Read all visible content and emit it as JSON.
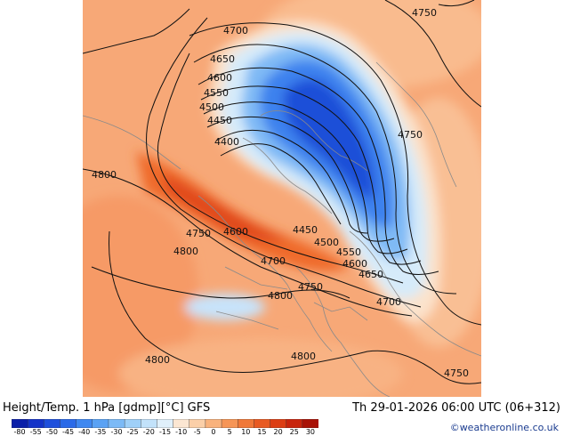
{
  "header": {
    "title_left": "Height/Temp. 1 hPa [gdmp][°C] GFS",
    "title_right": "Th 29-01-2026 06:00 UTC (06+312)"
  },
  "credit": "©weatheronline.co.uk",
  "legend": {
    "ticks": [
      "-80",
      "-55",
      "-50",
      "-45",
      "-40",
      "-35",
      "-30",
      "-25",
      "-20",
      "-15",
      "-10",
      "-5",
      "0",
      "5",
      "10",
      "15",
      "20",
      "25",
      "30"
    ],
    "colors": [
      "#0a1fa8",
      "#1433c8",
      "#1e4fdc",
      "#2a6ae8",
      "#3f88f0",
      "#5aa2f4",
      "#7cbaf6",
      "#9fd0f8",
      "#c2e2fa",
      "#e0f0fb",
      "#fbe6d2",
      "#fbcfa8",
      "#f9b27c",
      "#f69556",
      "#f07838",
      "#e85a22",
      "#dc3e14",
      "#c8240c",
      "#a81206"
    ]
  },
  "contours": {
    "labels": [
      {
        "text": "4750"
      },
      {
        "text": "4700"
      },
      {
        "text": "4650"
      },
      {
        "text": "4600"
      },
      {
        "text": "4550"
      },
      {
        "text": "4500"
      },
      {
        "text": "4450"
      },
      {
        "text": "4400"
      },
      {
        "text": "4750"
      },
      {
        "text": "4800"
      },
      {
        "text": "4750"
      },
      {
        "text": "4600"
      },
      {
        "text": "4450"
      },
      {
        "text": "4500"
      },
      {
        "text": "4550"
      },
      {
        "text": "4600"
      },
      {
        "text": "4650"
      },
      {
        "text": "4700"
      },
      {
        "text": "4800"
      },
      {
        "text": "4750"
      },
      {
        "text": "4800"
      },
      {
        "text": "4700"
      },
      {
        "text": "4800"
      },
      {
        "text": "4800"
      },
      {
        "text": "4750"
      }
    ]
  }
}
